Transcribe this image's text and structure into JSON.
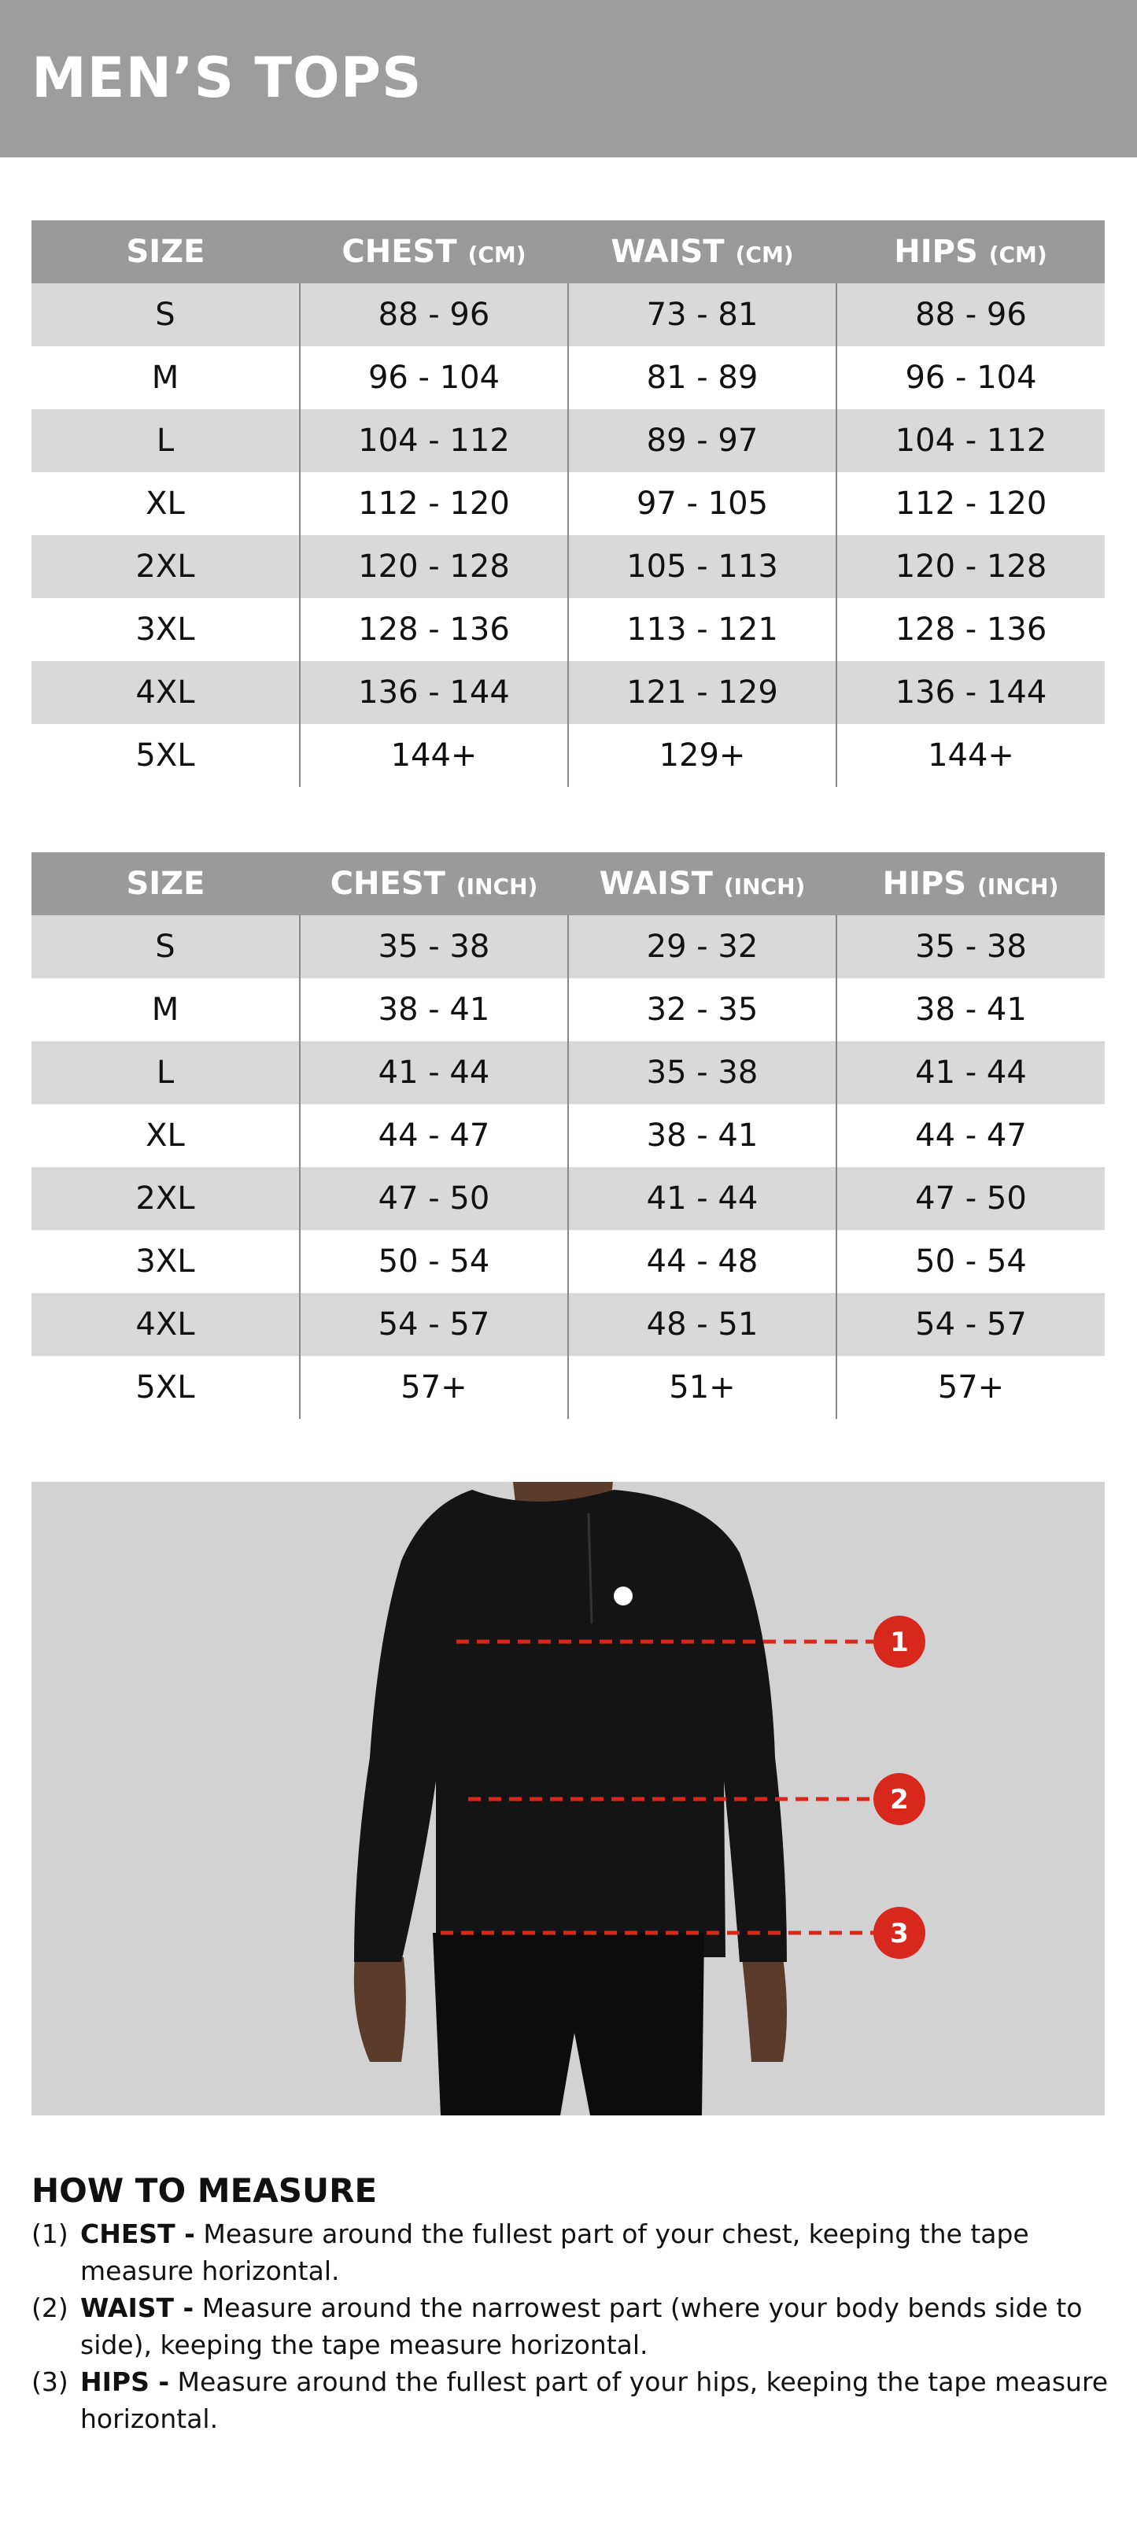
{
  "header": {
    "title": "MEN’S TOPS"
  },
  "tables": [
    {
      "columns": [
        {
          "label": "SIZE"
        },
        {
          "label": "CHEST",
          "unit": "(CM)"
        },
        {
          "label": "WAIST",
          "unit": "(CM)"
        },
        {
          "label": "HIPS",
          "unit": "(CM)"
        }
      ],
      "rows": [
        [
          "S",
          "88 - 96",
          "73 - 81",
          "88 - 96"
        ],
        [
          "M",
          "96 - 104",
          "81 - 89",
          "96 - 104"
        ],
        [
          "L",
          "104 - 112",
          "89 - 97",
          "104 - 112"
        ],
        [
          "XL",
          "112 - 120",
          "97 - 105",
          "112 - 120"
        ],
        [
          "2XL",
          "120 - 128",
          "105 - 113",
          "120 - 128"
        ],
        [
          "3XL",
          "128 - 136",
          "113 - 121",
          "128 - 136"
        ],
        [
          "4XL",
          "136 - 144",
          "121 - 129",
          "136 - 144"
        ],
        [
          "5XL",
          "144+",
          "129+",
          "144+"
        ]
      ]
    },
    {
      "columns": [
        {
          "label": "SIZE"
        },
        {
          "label": "CHEST",
          "unit": "(INCH)"
        },
        {
          "label": "WAIST",
          "unit": "(INCH)"
        },
        {
          "label": "HIPS",
          "unit": "(INCH)"
        }
      ],
      "rows": [
        [
          "S",
          "35 - 38",
          "29 - 32",
          "35 - 38"
        ],
        [
          "M",
          "38 - 41",
          "32 - 35",
          "38 - 41"
        ],
        [
          "L",
          "41 - 44",
          "35 - 38",
          "41 - 44"
        ],
        [
          "XL",
          "44 - 47",
          "38 - 41",
          "44 - 47"
        ],
        [
          "2XL",
          "47 - 50",
          "41 - 44",
          "47 - 50"
        ],
        [
          "3XL",
          "50 - 54",
          "44 - 48",
          "50 - 54"
        ],
        [
          "4XL",
          "54 - 57",
          "48 - 51",
          "54 - 57"
        ],
        [
          "5XL",
          "57+",
          "51+",
          "57+"
        ]
      ]
    }
  ],
  "figure": {
    "markers": [
      "1",
      "2",
      "3"
    ]
  },
  "instructions": {
    "title": "HOW TO MEASURE",
    "items": [
      {
        "number": "(1)",
        "term": "CHEST -",
        "text": "Measure around the fullest part of your chest, keeping the tape measure horizontal."
      },
      {
        "number": "(2)",
        "term": "WAIST -",
        "text": "Measure around the narrowest part (where your body bends side to side), keeping the tape measure horizontal."
      },
      {
        "number": "(3)",
        "term": "HIPS -",
        "text": "Measure around the fullest part of your hips, keeping the tape measure horizontal."
      }
    ]
  }
}
